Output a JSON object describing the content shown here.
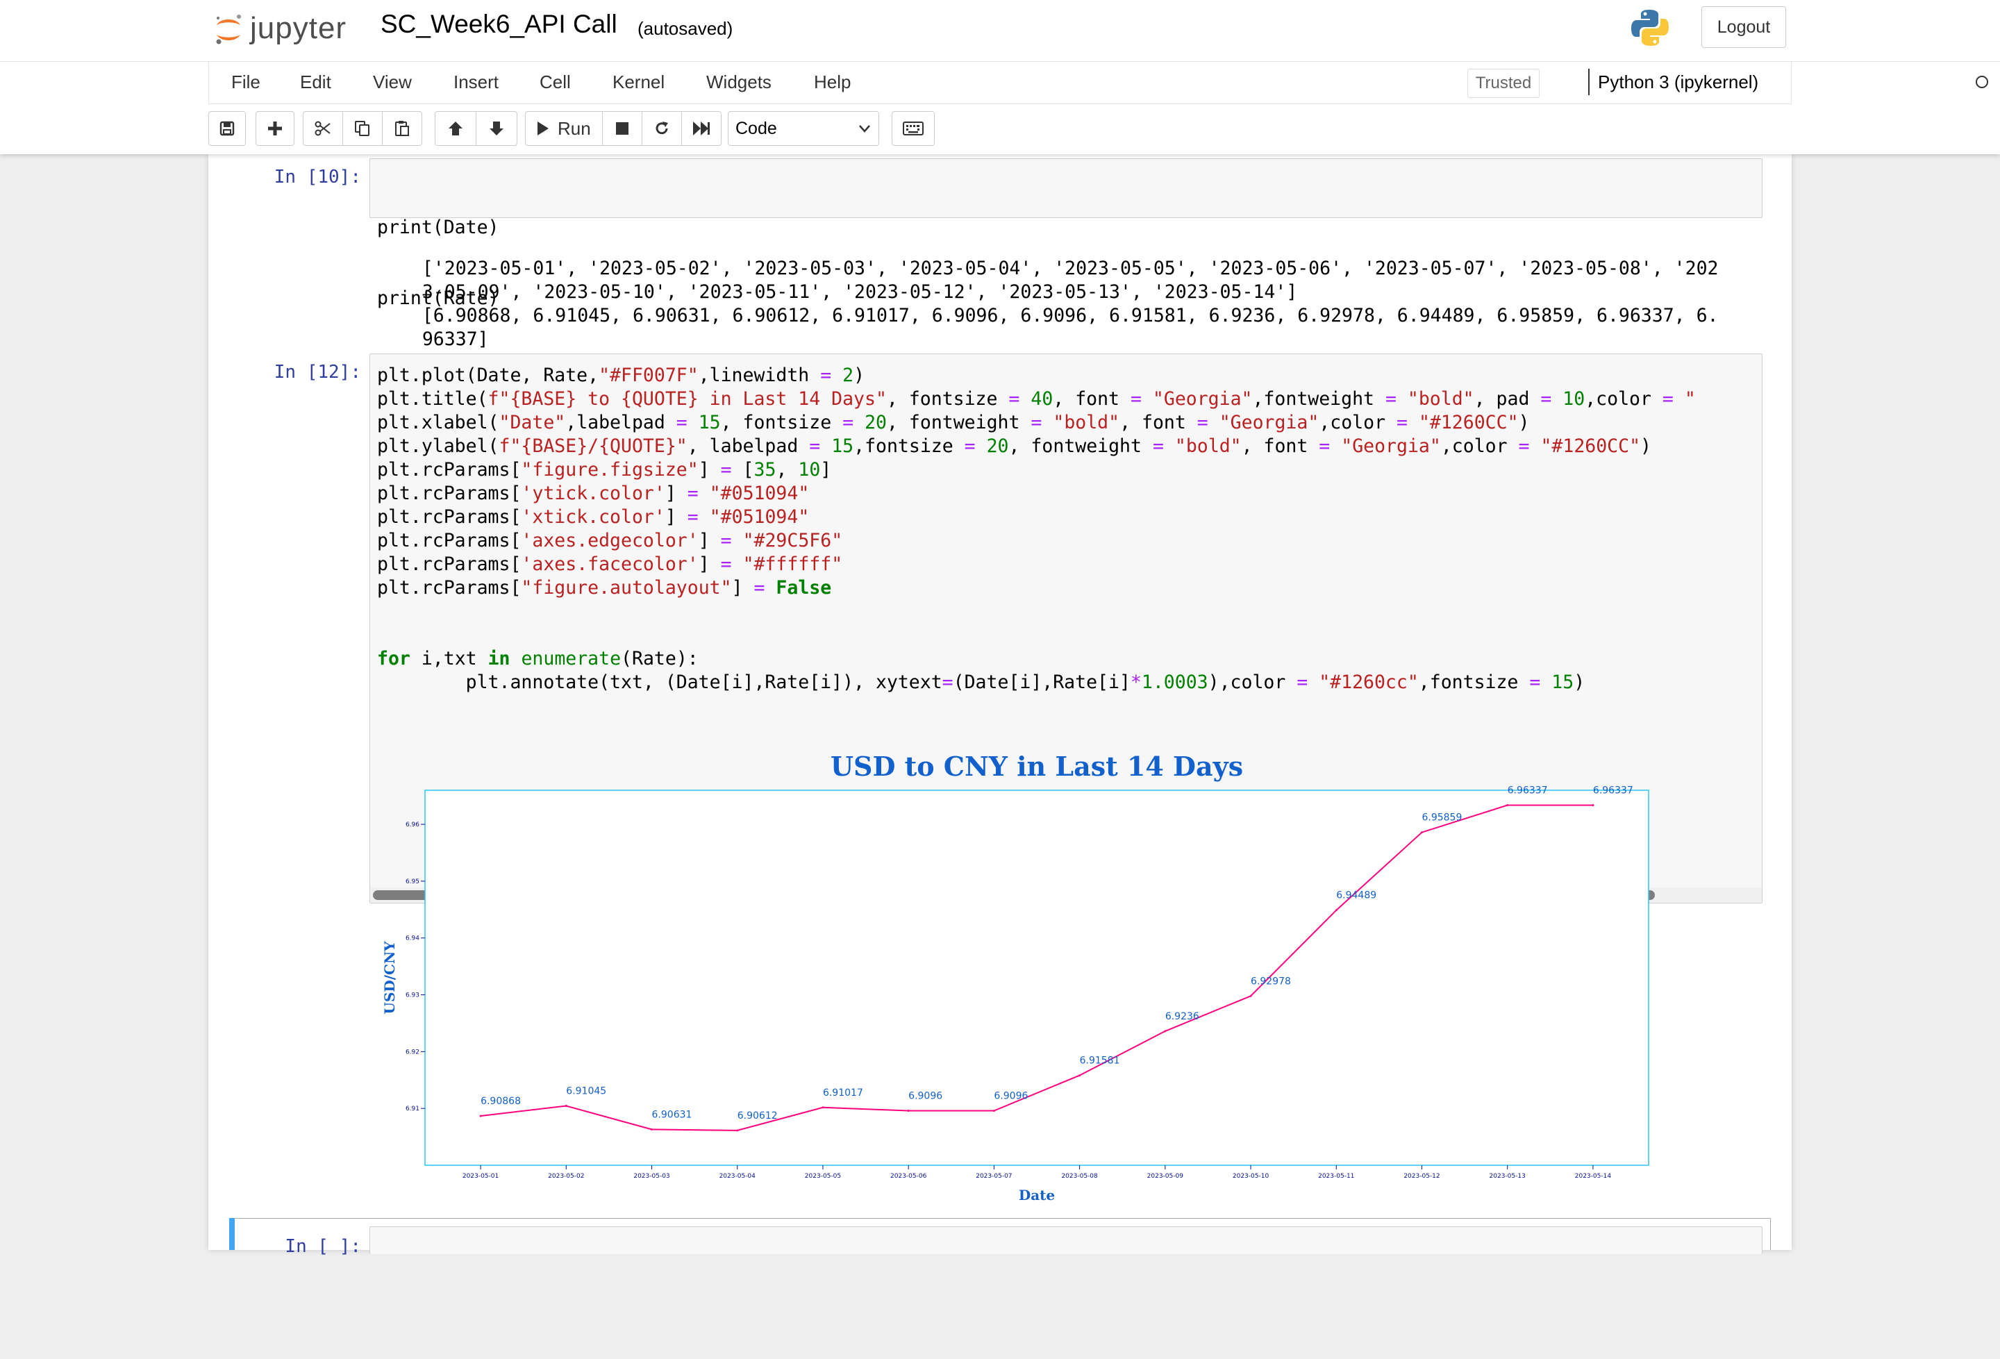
{
  "header": {
    "logo_text": "jupyter",
    "notebook_title": "SC_Week6_API Call",
    "autosave_status": "(autosaved)",
    "logout_label": "Logout"
  },
  "menu": {
    "items": [
      "File",
      "Edit",
      "View",
      "Insert",
      "Cell",
      "Kernel",
      "Widgets",
      "Help"
    ],
    "trusted_label": "Trusted",
    "kernel_name": "Python 3 (ipykernel)"
  },
  "toolbar": {
    "run_label": "Run",
    "cell_type": "Code",
    "icons": [
      "save-icon",
      "plus-icon",
      "cut-icon",
      "copy-icon",
      "paste-icon",
      "arrow-up-icon",
      "arrow-down-icon",
      "run-icon",
      "stop-icon",
      "restart-icon",
      "fast-forward-icon",
      "keyboard-icon"
    ]
  },
  "cells": [
    {
      "prompt": "In [10]:",
      "code": [
        "print(Date)",
        "print(Rate)"
      ],
      "output": [
        "['2023-05-01', '2023-05-02', '2023-05-03', '2023-05-04', '2023-05-05', '2023-05-06', '2023-05-07', '2023-05-08', '202",
        "3-05-09', '2023-05-10', '2023-05-11', '2023-05-12', '2023-05-13', '2023-05-14']",
        "[6.90868, 6.91045, 6.90631, 6.90612, 6.91017, 6.9096, 6.9096, 6.91581, 6.9236, 6.92978, 6.94489, 6.95859, 6.96337, 6.",
        "96337]"
      ]
    },
    {
      "prompt": "In [12]:",
      "code": [
        "plt.plot(Date, Rate,\"#FF007F\",linewidth = 2)",
        "plt.title(f\"{BASE} to {QUOTE} in Last 14 Days\", fontsize = 40, font = \"Georgia\",fontweight = \"bold\", pad = 10,color = \"",
        "plt.xlabel(\"Date\",labelpad = 15, fontsize = 20, fontweight = \"bold\", font = \"Georgia\",color = \"#1260CC\")",
        "plt.ylabel(f\"{BASE}/{QUOTE}\", labelpad = 15,fontsize = 20, fontweight = \"bold\", font = \"Georgia\",color = \"#1260CC\")",
        "plt.rcParams[\"figure.figsize\"] = [35, 10]",
        "plt.rcParams['ytick.color'] = \"#051094\"",
        "plt.rcParams['xtick.color'] = \"#051094\"",
        "plt.rcParams['axes.edgecolor'] = \"#29C5F6\"",
        "plt.rcParams['axes.facecolor'] = \"#ffffff\"",
        "plt.rcParams[\"figure.autolayout\"] = False",
        "",
        "",
        "for i,txt in enumerate(Rate):",
        "        plt.annotate(txt, (Date[i],Rate[i]), xytext=(Date[i],Rate[i]*1.0003),color = \"#1260cc\",fontsize = 15)"
      ]
    },
    {
      "prompt": "In [ ]:"
    }
  ],
  "chart_data": {
    "type": "line",
    "title": "USD to CNY in Last 14 Days",
    "xlabel": "Date",
    "ylabel": "USD/CNY",
    "x": [
      "2023-05-01",
      "2023-05-02",
      "2023-05-03",
      "2023-05-04",
      "2023-05-05",
      "2023-05-06",
      "2023-05-07",
      "2023-05-08",
      "2023-05-09",
      "2023-05-10",
      "2023-05-11",
      "2023-05-12",
      "2023-05-13",
      "2023-05-14"
    ],
    "y": [
      6.90868,
      6.91045,
      6.90631,
      6.90612,
      6.91017,
      6.9096,
      6.9096,
      6.91581,
      6.9236,
      6.92978,
      6.94489,
      6.95859,
      6.96337,
      6.96337
    ],
    "data_labels": [
      "6.90868",
      "6.91045",
      "6.90631",
      "6.90612",
      "6.91017",
      "6.9096",
      "6.9096",
      "6.91581",
      "6.9236",
      "6.92978",
      "6.94489",
      "6.95859",
      "6.96337",
      "6.96337"
    ],
    "yticks": [
      6.91,
      6.92,
      6.93,
      6.94,
      6.95,
      6.96
    ],
    "ytick_labels": [
      "6.91",
      "6.92",
      "6.93",
      "6.94",
      "6.95",
      "6.96"
    ],
    "ylim": [
      6.9,
      6.966
    ],
    "grid": false,
    "colors": {
      "line": "#FF007F",
      "title": "#1260CC",
      "labels": "#1260CC",
      "ticks": "#051094",
      "axes_edge": "#29C5F6",
      "annotation": "#1260cc"
    }
  }
}
